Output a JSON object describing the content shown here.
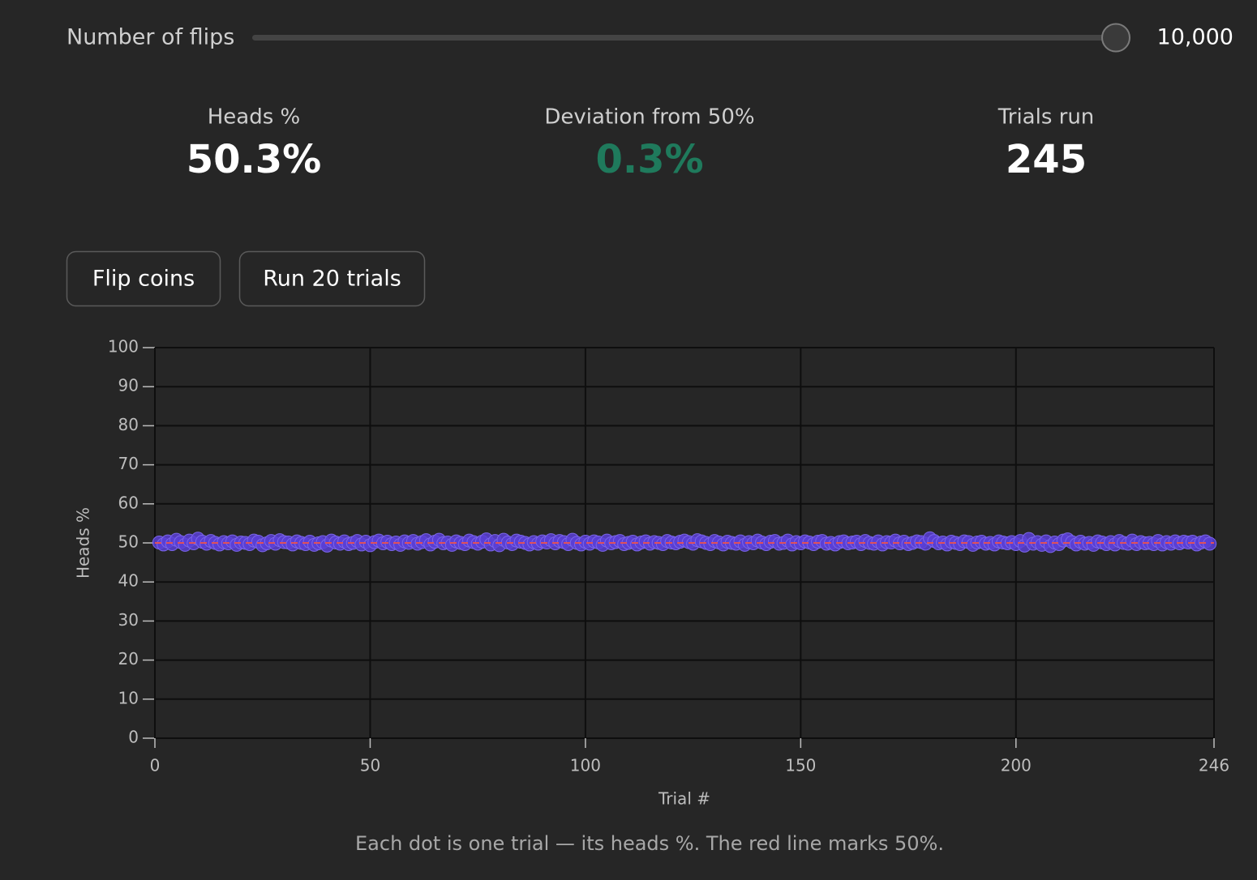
{
  "slider": {
    "label": "Number of flips",
    "value": {
      "value": 10000,
      "label": "10,000"
    }
  },
  "stats": [
    {
      "label": "Heads %",
      "value": "50.3%"
    },
    {
      "label": "Deviation from 50%",
      "value": "0.3%"
    },
    {
      "label": "Trials run",
      "value": "245"
    }
  ],
  "buttons": [
    "Flip coins",
    "Run 20 trials"
  ],
  "caption": "Each dot is one trial — its heads %. The red line marks 50%.",
  "chart_data": {
    "type": "scatter",
    "x_label": "Trial #",
    "y_label": "Heads %",
    "xlim": [
      0,
      246
    ],
    "xticks": [
      0,
      50,
      100,
      150,
      200,
      246
    ],
    "ylim": [
      0,
      100
    ],
    "yticks": [
      0,
      10,
      20,
      30,
      40,
      50,
      60,
      70,
      80,
      90,
      100
    ],
    "grid": true,
    "color": "#5b3fd6",
    "reference_line": {
      "value": 50,
      "color": "#e0505a"
    },
    "x": [
      1,
      2,
      3,
      4,
      5,
      6,
      7,
      8,
      9,
      10,
      11,
      12,
      13,
      14,
      15,
      16,
      17,
      18,
      19,
      20,
      21,
      22,
      23,
      24,
      25,
      26,
      27,
      28,
      29,
      30,
      31,
      32,
      33,
      34,
      35,
      36,
      37,
      38,
      39,
      40,
      41,
      42,
      43,
      44,
      45,
      46,
      47,
      48,
      49,
      50,
      51,
      52,
      53,
      54,
      55,
      56,
      57,
      58,
      59,
      60,
      61,
      62,
      63,
      64,
      65,
      66,
      67,
      68,
      69,
      70,
      71,
      72,
      73,
      74,
      75,
      76,
      77,
      78,
      79,
      80,
      81,
      82,
      83,
      84,
      85,
      86,
      87,
      88,
      89,
      90,
      91,
      92,
      93,
      94,
      95,
      96,
      97,
      98,
      99,
      100,
      101,
      102,
      103,
      104,
      105,
      106,
      107,
      108,
      109,
      110,
      111,
      112,
      113,
      114,
      115,
      116,
      117,
      118,
      119,
      120,
      121,
      122,
      123,
      124,
      125,
      126,
      127,
      128,
      129,
      130,
      131,
      132,
      133,
      134,
      135,
      136,
      137,
      138,
      139,
      140,
      141,
      142,
      143,
      144,
      145,
      146,
      147,
      148,
      149,
      150,
      151,
      152,
      153,
      154,
      155,
      156,
      157,
      158,
      159,
      160,
      161,
      162,
      163,
      164,
      165,
      166,
      167,
      168,
      169,
      170,
      171,
      172,
      173,
      174,
      175,
      176,
      177,
      178,
      179,
      180,
      181,
      182,
      183,
      184,
      185,
      186,
      187,
      188,
      189,
      190,
      191,
      192,
      193,
      194,
      195,
      196,
      197,
      198,
      199,
      200,
      201,
      202,
      203,
      204,
      205,
      206,
      207,
      208,
      209,
      210,
      211,
      212,
      213,
      214,
      215,
      216,
      217,
      218,
      219,
      220,
      221,
      222,
      223,
      224,
      225,
      226,
      227,
      228,
      229,
      230,
      231,
      232,
      233,
      234,
      235,
      236,
      237,
      238,
      239,
      240,
      241,
      242,
      243,
      244,
      245
    ],
    "values": [
      50.1,
      49.6,
      50.4,
      49.7,
      50.8,
      50.2,
      49.5,
      50.6,
      49.9,
      51.1,
      50.3,
      49.8,
      50.5,
      50.0,
      49.6,
      50.2,
      49.9,
      50.4,
      49.5,
      50.1,
      50.0,
      49.7,
      50.6,
      50.3,
      49.4,
      49.9,
      50.5,
      49.8,
      50.7,
      50.2,
      50.1,
      49.6,
      50.4,
      50.0,
      49.7,
      50.3,
      49.5,
      49.9,
      50.2,
      49.3,
      50.6,
      50.1,
      49.8,
      50.4,
      49.7,
      50.0,
      50.5,
      49.6,
      50.3,
      49.4,
      50.2,
      50.6,
      49.9,
      50.3,
      49.7,
      50.1,
      49.5,
      50.4,
      50.0,
      50.5,
      49.8,
      50.2,
      50.7,
      49.6,
      50.3,
      50.8,
      49.9,
      50.1,
      49.5,
      50.4,
      50.0,
      49.7,
      50.6,
      50.2,
      49.8,
      50.3,
      50.9,
      49.6,
      50.5,
      49.4,
      50.8,
      50.1,
      49.7,
      50.6,
      50.3,
      50.0,
      49.6,
      50.2,
      49.8,
      50.4,
      50.1,
      50.7,
      49.9,
      50.5,
      50.2,
      49.7,
      50.8,
      50.0,
      49.6,
      50.3,
      49.8,
      50.4,
      50.1,
      49.5,
      50.6,
      49.9,
      50.2,
      50.5,
      49.7,
      50.0,
      50.3,
      49.6,
      50.1,
      50.4,
      49.8,
      50.2,
      50.0,
      49.7,
      50.5,
      50.1,
      49.9,
      50.3,
      50.6,
      50.2,
      49.8,
      50.7,
      50.4,
      50.0,
      49.7,
      50.5,
      50.1,
      49.6,
      50.3,
      50.0,
      49.8,
      50.4,
      49.5,
      50.2,
      49.9,
      50.6,
      50.1,
      49.7,
      50.3,
      50.5,
      49.8,
      50.0,
      50.6,
      49.6,
      50.2,
      49.9,
      50.4,
      50.1,
      49.7,
      50.3,
      50.5,
      49.8,
      50.0,
      49.6,
      50.2,
      50.4,
      49.9,
      50.1,
      50.3,
      49.7,
      50.5,
      50.0,
      49.8,
      50.4,
      49.6,
      50.2,
      50.1,
      50.6,
      49.9,
      50.3,
      49.7,
      50.0,
      50.4,
      50.2,
      49.8,
      51.2,
      50.5,
      49.9,
      50.1,
      49.6,
      50.3,
      50.0,
      49.7,
      50.4,
      50.2,
      49.5,
      50.1,
      50.3,
      49.8,
      50.0,
      49.6,
      50.4,
      50.1,
      49.9,
      50.2,
      49.7,
      50.5,
      49.3,
      51.0,
      49.8,
      50.2,
      49.5,
      50.4,
      49.2,
      50.1,
      49.7,
      50.6,
      50.9,
      50.2,
      49.6,
      50.3,
      49.8,
      50.0,
      49.5,
      50.4,
      50.1,
      49.7,
      50.2,
      49.6,
      50.5,
      50.0,
      49.8,
      50.6,
      49.7,
      50.2,
      49.9,
      50.0,
      49.7,
      50.5,
      49.6,
      50.2,
      49.8,
      50.4,
      49.9,
      50.3,
      50.1,
      50.3,
      49.6,
      50.1,
      50.4,
      49.8
    ]
  }
}
